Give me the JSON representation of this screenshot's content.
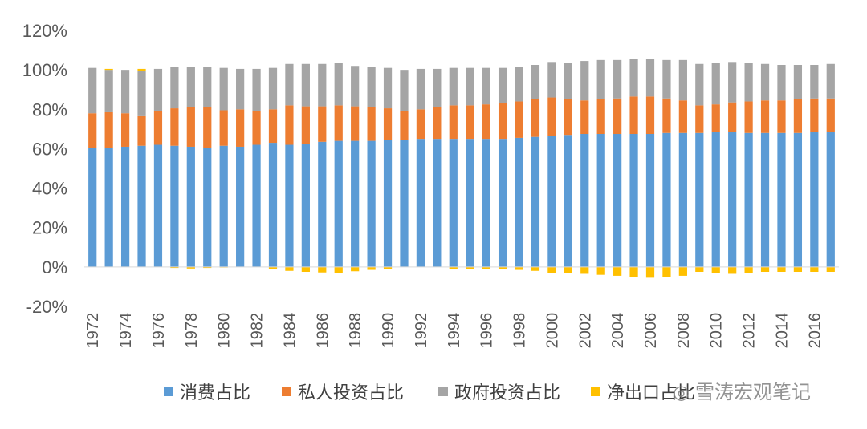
{
  "chart_data": {
    "type": "bar",
    "stacked": true,
    "ylim": [
      -0.2,
      1.2
    ],
    "yticks": [
      "120%",
      "100%",
      "80%",
      "60%",
      "40%",
      "20%",
      "0%",
      "-20%"
    ],
    "grid": false,
    "legend_position": "bottom",
    "categories": [
      1972,
      1973,
      1974,
      1975,
      1976,
      1977,
      1978,
      1979,
      1980,
      1981,
      1982,
      1983,
      1984,
      1985,
      1986,
      1987,
      1988,
      1989,
      1990,
      1991,
      1992,
      1993,
      1994,
      1995,
      1996,
      1997,
      1998,
      1999,
      2000,
      2001,
      2002,
      2003,
      2004,
      2005,
      2006,
      2007,
      2008,
      2009,
      2010,
      2011,
      2012,
      2013,
      2014,
      2015,
      2016,
      2017
    ],
    "xtick_labels": [
      "1972",
      "1974",
      "1976",
      "1978",
      "1980",
      "1982",
      "1984",
      "1986",
      "1988",
      "1990",
      "1992",
      "1994",
      "1996",
      "1998",
      "2000",
      "2002",
      "2004",
      "2006",
      "2008",
      "2010",
      "2012",
      "2014",
      "2016"
    ],
    "series": [
      {
        "name": "消费占比",
        "color": "#5B9BD5",
        "values": [
          0.605,
          0.605,
          0.61,
          0.615,
          0.62,
          0.615,
          0.61,
          0.605,
          0.615,
          0.61,
          0.62,
          0.63,
          0.62,
          0.625,
          0.635,
          0.64,
          0.64,
          0.64,
          0.645,
          0.645,
          0.65,
          0.65,
          0.65,
          0.65,
          0.65,
          0.65,
          0.655,
          0.66,
          0.665,
          0.67,
          0.675,
          0.675,
          0.675,
          0.675,
          0.675,
          0.68,
          0.68,
          0.68,
          0.685,
          0.685,
          0.68,
          0.68,
          0.68,
          0.68,
          0.685,
          0.685
        ]
      },
      {
        "name": "私人投资占比",
        "color": "#ED7D31",
        "values": [
          0.175,
          0.18,
          0.17,
          0.15,
          0.17,
          0.19,
          0.2,
          0.205,
          0.18,
          0.19,
          0.17,
          0.17,
          0.2,
          0.19,
          0.18,
          0.18,
          0.175,
          0.17,
          0.16,
          0.145,
          0.15,
          0.16,
          0.17,
          0.17,
          0.175,
          0.18,
          0.185,
          0.19,
          0.195,
          0.18,
          0.17,
          0.175,
          0.18,
          0.19,
          0.19,
          0.175,
          0.165,
          0.14,
          0.14,
          0.15,
          0.16,
          0.165,
          0.165,
          0.17,
          0.17,
          0.17
        ]
      },
      {
        "name": "政府投资占比",
        "color": "#A5A5A5",
        "values": [
          0.23,
          0.215,
          0.22,
          0.23,
          0.215,
          0.21,
          0.205,
          0.205,
          0.215,
          0.205,
          0.215,
          0.21,
          0.21,
          0.215,
          0.215,
          0.215,
          0.205,
          0.205,
          0.205,
          0.21,
          0.205,
          0.195,
          0.19,
          0.19,
          0.185,
          0.18,
          0.175,
          0.175,
          0.18,
          0.185,
          0.2,
          0.2,
          0.195,
          0.19,
          0.19,
          0.195,
          0.205,
          0.21,
          0.21,
          0.205,
          0.195,
          0.185,
          0.18,
          0.175,
          0.17,
          0.175
        ]
      },
      {
        "name": "净出口占比",
        "color": "#FFC000",
        "values": [
          0.0,
          0.005,
          0.0,
          0.01,
          0.0,
          -0.005,
          -0.008,
          -0.005,
          -0.003,
          0.0,
          0.0,
          -0.01,
          -0.02,
          -0.025,
          -0.028,
          -0.03,
          -0.022,
          -0.015,
          -0.01,
          0.0,
          0.0,
          0.0,
          -0.01,
          -0.01,
          -0.01,
          -0.01,
          -0.015,
          -0.02,
          -0.03,
          -0.03,
          -0.035,
          -0.04,
          -0.045,
          -0.05,
          -0.055,
          -0.05,
          -0.045,
          -0.025,
          -0.03,
          -0.035,
          -0.03,
          -0.025,
          -0.025,
          -0.025,
          -0.025,
          -0.025
        ]
      }
    ]
  },
  "watermark": "雪涛宏观笔记"
}
